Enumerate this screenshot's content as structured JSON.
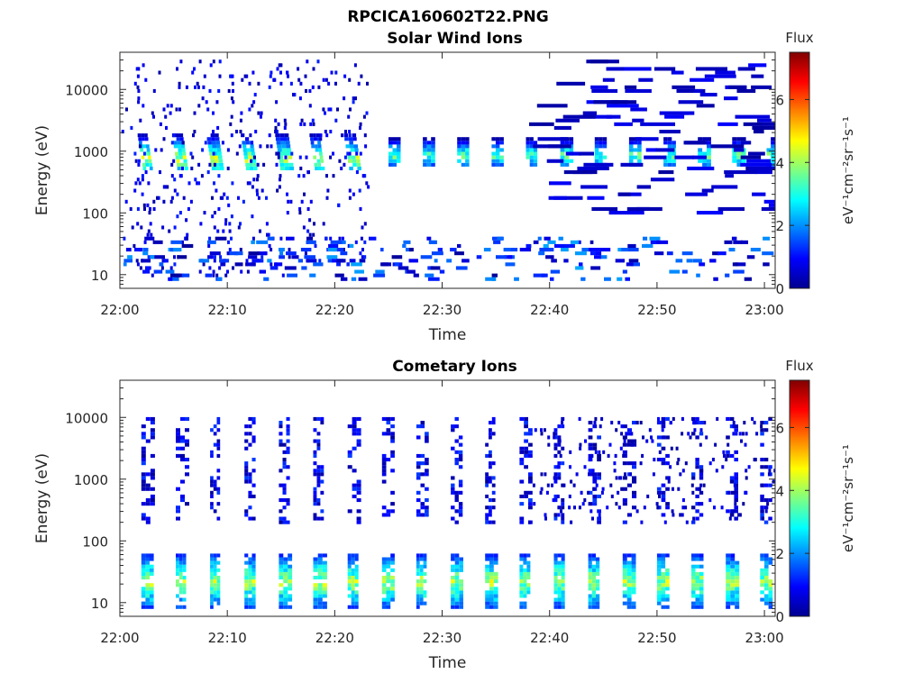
{
  "figure": {
    "title": "RPCICA160602T22.PNG"
  },
  "chart_data": [
    {
      "type": "heatmap",
      "title": "Solar Wind Ions",
      "xlabel": "Time",
      "ylabel": "Energy (eV)",
      "xlim": [
        "22:00",
        "23:01"
      ],
      "xticks": [
        "22:00",
        "22:10",
        "22:20",
        "22:30",
        "22:40",
        "22:50",
        "23:00"
      ],
      "ylim": [
        6,
        40000
      ],
      "yscale": "log",
      "yticks": [
        10,
        100,
        1000,
        10000
      ],
      "ytick_labels": [
        "10",
        "100",
        "1000",
        "10000"
      ],
      "colorbar": {
        "label": "Flux",
        "unit": "eV⁻¹cm⁻²sr⁻¹s⁻¹",
        "range": [
          0,
          7.5
        ],
        "ticks": [
          0,
          2,
          4,
          6
        ],
        "colormap": "jet"
      },
      "features": [
        {
          "from": "22:02",
          "to": "22:23",
          "period_min": 3.2,
          "energy_band": [
            500,
            2000
          ],
          "peak_energy": 700,
          "peak_flux": 4.5,
          "sweep": "descending"
        },
        {
          "from": "22:25",
          "to": "23:01",
          "period_min": 3.2,
          "energy_band": [
            600,
            1500
          ],
          "peak_energy": 800,
          "peak_flux": 4.0
        },
        {
          "from": "22:00",
          "to": "22:23",
          "energy_band": [
            10,
            30000
          ],
          "description": "sparse low-flux counts",
          "peak_flux": 1.0
        },
        {
          "from": "22:38",
          "to": "23:01",
          "energy_band": [
            100,
            30000
          ],
          "description": "horizontal low-flux streaks",
          "peak_flux": 0.8
        },
        {
          "from": "22:00",
          "to": "23:01",
          "energy_band": [
            8,
            40
          ],
          "description": "low-energy patches",
          "peak_flux": 2.0
        }
      ]
    },
    {
      "type": "heatmap",
      "title": "Cometary Ions",
      "xlabel": "Time",
      "ylabel": "Energy (eV)",
      "xlim": [
        "22:00",
        "23:01"
      ],
      "xticks": [
        "22:00",
        "22:10",
        "22:20",
        "22:30",
        "22:40",
        "22:50",
        "23:00"
      ],
      "ylim": [
        6,
        40000
      ],
      "yscale": "log",
      "yticks": [
        10,
        100,
        1000,
        10000
      ],
      "ytick_labels": [
        "10",
        "100",
        "1000",
        "10000"
      ],
      "colorbar": {
        "label": "Flux",
        "unit": "eV⁻¹cm⁻²sr⁻¹s⁻¹",
        "range": [
          0,
          7.5
        ],
        "ticks": [
          0,
          2,
          4,
          6
        ],
        "colormap": "jet"
      },
      "features": [
        {
          "from": "22:02",
          "to": "23:01",
          "period_min": 3.2,
          "energy_band": [
            8,
            60
          ],
          "peak_energy": 20,
          "peak_flux": 4.5
        },
        {
          "from": "22:02",
          "to": "23:01",
          "period_min": 3.2,
          "energy_band": [
            200,
            10000
          ],
          "peak_flux": 1.2,
          "description": "vertical low-flux streaks"
        },
        {
          "from": "22:38",
          "to": "23:01",
          "energy_band": [
            200,
            10000
          ],
          "description": "scattered low-flux counts",
          "peak_flux": 0.8
        }
      ]
    }
  ]
}
